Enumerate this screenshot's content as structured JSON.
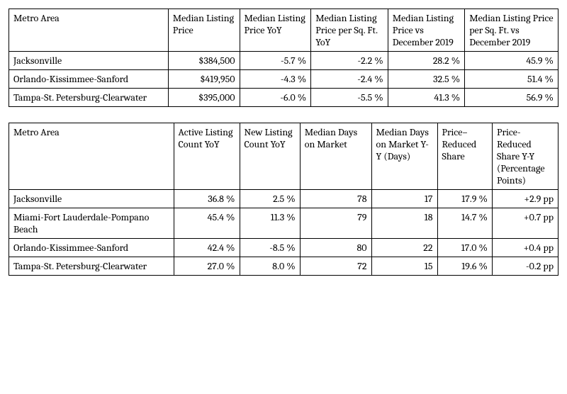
{
  "table1": {
    "columns": [
      "Metro Area",
      "Median Listing Price",
      "Median Listing Price YoY",
      "Median Listing Price per Sq. Ft.\nYoY",
      "Median Listing Price vs December 2019",
      "Median Listing Price per Sq. Ft.\nvs December 2019"
    ],
    "rows": [
      [
        "Jacksonville",
        "$384,500",
        "-5.7 %",
        "-2.2 %",
        "28.2 %",
        "45.9 %"
      ],
      [
        "Orlando-Kissimmee-Sanford",
        "$419,950",
        "-4.3 %",
        "-2.4 %",
        "32.5 %",
        "51.4 %"
      ],
      [
        "Tampa-St. Petersburg-Clearwater",
        "$395,000",
        "-6.0 %",
        "-5.5 %",
        "41.3 %",
        "56.9 %"
      ]
    ],
    "border_color": "#000000",
    "background_color": "#ffffff",
    "text_color": "#000000",
    "font_size": 14,
    "numeric_alignment": "right",
    "first_col_alignment": "left"
  },
  "table2": {
    "columns": [
      "Metro Area",
      "Active Listing Count YoY",
      "New Listing Count YoY",
      "Median Days on Market",
      "Median Days on Market Y-Y (Days)",
      "Price–Reduced Share",
      "Price-Reduced Share Y-Y (Percentage Points)"
    ],
    "rows": [
      [
        "Jacksonville",
        "36.8 %",
        "2.5 %",
        "78",
        "17",
        "17.9 %",
        "+2.9 pp"
      ],
      [
        "Miami-Fort Lauderdale-Pompano Beach",
        "45.4 %",
        "11.3 %",
        "79",
        "18",
        "14.7 %",
        "+0.7 pp"
      ],
      [
        "Orlando-Kissimmee-Sanford",
        "42.4 %",
        "-8.5 %",
        "80",
        "22",
        "17.0 %",
        "+0.4 pp"
      ],
      [
        "Tampa-St. Petersburg-Clearwater",
        "27.0 %",
        "8.0 %",
        "72",
        "15",
        "19.6 %",
        "-0.2 pp"
      ]
    ],
    "border_color": "#000000",
    "background_color": "#ffffff",
    "text_color": "#000000",
    "font_size": 14,
    "numeric_alignment": "right",
    "first_col_alignment": "left"
  }
}
